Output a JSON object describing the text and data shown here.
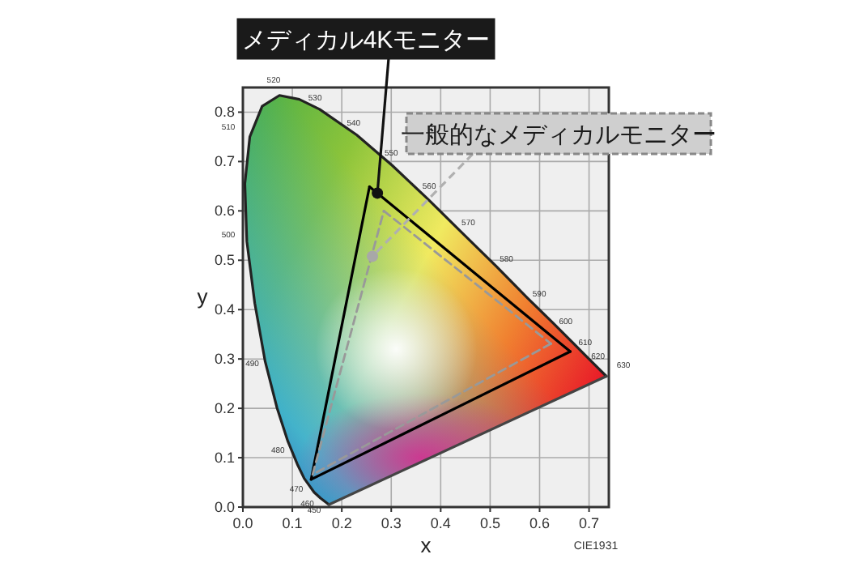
{
  "chart_data": {
    "type": "line",
    "xlabel": "x",
    "ylabel": "y",
    "xlim": [
      0,
      0.74
    ],
    "ylim": [
      0,
      0.85
    ],
    "xticks": [
      {
        "value": 0,
        "label": "0.0"
      },
      0.1,
      0.2,
      0.3,
      0.4,
      0.5,
      0.6,
      0.7
    ],
    "yticks": [
      {
        "value": 0,
        "label": "0.0"
      },
      0.1,
      0.2,
      0.3,
      0.4,
      0.5,
      0.6,
      0.7,
      0.8
    ],
    "grid": true,
    "marker": "none",
    "series": [
      {
        "color": "#222222",
        "line_style": "solid",
        "x": [
          0.174,
          0.157,
          0.144,
          0.124,
          0.11,
          0.091,
          0.069,
          0.045,
          0.024,
          0.008,
          0.004,
          0.014,
          0.039,
          0.074,
          0.114,
          0.155,
          0.23,
          0.302,
          0.373,
          0.444,
          0.513,
          0.575,
          0.627,
          0.666,
          0.692,
          0.708,
          0.735
        ],
        "values": [
          0.005,
          0.018,
          0.03,
          0.058,
          0.087,
          0.133,
          0.201,
          0.295,
          0.413,
          0.538,
          0.655,
          0.75,
          0.812,
          0.834,
          0.826,
          0.806,
          0.754,
          0.692,
          0.625,
          0.555,
          0.487,
          0.424,
          0.373,
          0.334,
          0.308,
          0.292,
          0.265
        ]
      },
      {
        "color": "#444444",
        "line_style": "solid",
        "x": [
          0.735,
          0.174
        ],
        "values": [
          0.265,
          0.005
        ]
      },
      {
        "color": "#000000",
        "line_style": "solid",
        "x": [
          0.256,
          0.662
        ],
        "values": [
          0.649,
          0.315
        ]
      },
      {
        "color": "#000000",
        "line_style": "solid",
        "x": [
          0.662,
          0.138
        ],
        "values": [
          0.315,
          0.056
        ]
      },
      {
        "color": "#000000",
        "line_style": "solid",
        "x": [
          0.138,
          0.256
        ],
        "values": [
          0.056,
          0.649
        ]
      },
      {
        "color": "#999999",
        "line_style": "dashed",
        "x": [
          0.285,
          0.623
        ],
        "values": [
          0.6,
          0.331
        ]
      },
      {
        "color": "#999999",
        "line_style": "dashed",
        "x": [
          0.623,
          0.141
        ],
        "values": [
          0.331,
          0.066
        ]
      },
      {
        "color": "#999999",
        "line_style": "dashed",
        "x": [
          0.141,
          0.285
        ],
        "values": [
          0.066,
          0.6
        ]
      }
    ],
    "annotations": [
      {
        "text": "メディカル4Kモニター",
        "x": 0.272,
        "y": 0.636
      },
      {
        "text": "一般的なメディカルモニター",
        "x": 0.262,
        "y": 0.508
      },
      "CIE1931",
      {
        "text": "450",
        "x": 0.157,
        "y": 0.018
      },
      {
        "text": "460",
        "x": 0.144,
        "y": 0.03
      },
      {
        "text": "470",
        "x": 0.124,
        "y": 0.058
      },
      {
        "text": "480",
        "x": 0.091,
        "y": 0.133
      },
      {
        "text": "490",
        "x": 0.045,
        "y": 0.295
      },
      {
        "text": "500",
        "x": 0.008,
        "y": 0.538
      },
      {
        "text": "510",
        "x": 0.014,
        "y": 0.75
      },
      {
        "text": "520",
        "x": 0.074,
        "y": 0.834
      },
      {
        "text": "530",
        "x": 0.155,
        "y": 0.806
      },
      {
        "text": "540",
        "x": 0.23,
        "y": 0.754
      },
      {
        "text": "550",
        "x": 0.302,
        "y": 0.692
      },
      {
        "text": "560",
        "x": 0.373,
        "y": 0.625
      },
      {
        "text": "570",
        "x": 0.444,
        "y": 0.555
      },
      {
        "text": "580",
        "x": 0.513,
        "y": 0.487
      },
      {
        "text": "590",
        "x": 0.575,
        "y": 0.424
      },
      {
        "text": "600",
        "x": 0.627,
        "y": 0.373
      },
      {
        "text": "610",
        "x": 0.666,
        "y": 0.334
      },
      {
        "text": "620",
        "x": 0.692,
        "y": 0.308
      },
      {
        "text": "630",
        "x": 0.708,
        "y": 0.292
      }
    ]
  }
}
